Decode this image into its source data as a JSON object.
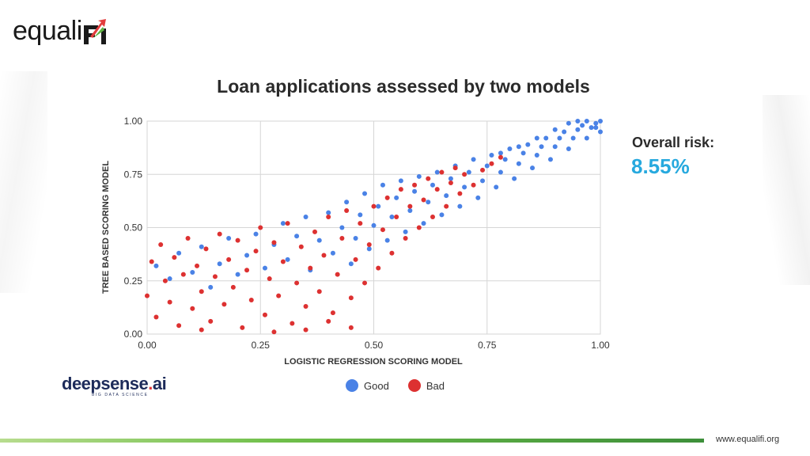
{
  "brand": {
    "name": "equaliFi",
    "partner_main": "deepsense",
    "partner_dot": ".",
    "partner_tld": "ai",
    "partner_tagline": "BIG DATA SCIENCE",
    "website": "www.equalifi.org"
  },
  "metric": {
    "label": "Overall risk:",
    "value": "8.55%",
    "color": "#27a9de"
  },
  "colors": {
    "good": "#4a82e6",
    "bad": "#dd3131",
    "grid": "#d6d6d6",
    "accent_green": "#5fb443"
  },
  "chart_data": {
    "type": "scatter",
    "title": "Loan applications assessed by two models",
    "xlabel": "LOGISTIC REGRESSION SCORING MODEL",
    "ylabel": "TREE BASED SCORING MODEL",
    "xlim": [
      0,
      1
    ],
    "ylim": [
      0,
      1
    ],
    "xticks": [
      "0.00",
      "0.25",
      "0.50",
      "0.75",
      "1.00"
    ],
    "yticks": [
      "0.00",
      "0.25",
      "0.50",
      "0.75",
      "1.00"
    ],
    "grid": true,
    "legend_position": "bottom-center",
    "series": [
      {
        "name": "Good",
        "color": "#4a82e6",
        "points": [
          [
            0.02,
            0.32
          ],
          [
            0.05,
            0.26
          ],
          [
            0.07,
            0.38
          ],
          [
            0.1,
            0.29
          ],
          [
            0.12,
            0.41
          ],
          [
            0.14,
            0.22
          ],
          [
            0.16,
            0.33
          ],
          [
            0.18,
            0.45
          ],
          [
            0.2,
            0.28
          ],
          [
            0.22,
            0.37
          ],
          [
            0.24,
            0.47
          ],
          [
            0.26,
            0.31
          ],
          [
            0.28,
            0.42
          ],
          [
            0.3,
            0.52
          ],
          [
            0.31,
            0.35
          ],
          [
            0.33,
            0.46
          ],
          [
            0.35,
            0.55
          ],
          [
            0.36,
            0.3
          ],
          [
            0.38,
            0.44
          ],
          [
            0.4,
            0.57
          ],
          [
            0.41,
            0.38
          ],
          [
            0.43,
            0.5
          ],
          [
            0.44,
            0.62
          ],
          [
            0.45,
            0.33
          ],
          [
            0.46,
            0.45
          ],
          [
            0.47,
            0.56
          ],
          [
            0.48,
            0.66
          ],
          [
            0.49,
            0.4
          ],
          [
            0.5,
            0.51
          ],
          [
            0.51,
            0.6
          ],
          [
            0.52,
            0.7
          ],
          [
            0.53,
            0.44
          ],
          [
            0.54,
            0.55
          ],
          [
            0.55,
            0.64
          ],
          [
            0.56,
            0.72
          ],
          [
            0.57,
            0.48
          ],
          [
            0.58,
            0.58
          ],
          [
            0.59,
            0.67
          ],
          [
            0.6,
            0.74
          ],
          [
            0.61,
            0.52
          ],
          [
            0.62,
            0.62
          ],
          [
            0.63,
            0.7
          ],
          [
            0.64,
            0.76
          ],
          [
            0.65,
            0.56
          ],
          [
            0.66,
            0.65
          ],
          [
            0.67,
            0.73
          ],
          [
            0.68,
            0.79
          ],
          [
            0.69,
            0.6
          ],
          [
            0.7,
            0.69
          ],
          [
            0.71,
            0.76
          ],
          [
            0.72,
            0.82
          ],
          [
            0.73,
            0.64
          ],
          [
            0.74,
            0.72
          ],
          [
            0.75,
            0.79
          ],
          [
            0.76,
            0.84
          ],
          [
            0.77,
            0.69
          ],
          [
            0.78,
            0.76
          ],
          [
            0.79,
            0.82
          ],
          [
            0.8,
            0.87
          ],
          [
            0.81,
            0.73
          ],
          [
            0.82,
            0.8
          ],
          [
            0.83,
            0.85
          ],
          [
            0.84,
            0.89
          ],
          [
            0.85,
            0.78
          ],
          [
            0.86,
            0.84
          ],
          [
            0.87,
            0.88
          ],
          [
            0.88,
            0.92
          ],
          [
            0.89,
            0.82
          ],
          [
            0.9,
            0.88
          ],
          [
            0.91,
            0.92
          ],
          [
            0.92,
            0.95
          ],
          [
            0.93,
            0.87
          ],
          [
            0.94,
            0.92
          ],
          [
            0.95,
            0.96
          ],
          [
            0.96,
            0.98
          ],
          [
            0.97,
            0.92
          ],
          [
            0.98,
            0.97
          ],
          [
            0.99,
            0.99
          ],
          [
            1.0,
            0.95
          ],
          [
            1.0,
            1.0
          ],
          [
            0.95,
            1.0
          ],
          [
            0.97,
            1.0
          ],
          [
            0.99,
            0.97
          ],
          [
            0.93,
            0.99
          ],
          [
            0.9,
            0.96
          ],
          [
            0.86,
            0.92
          ],
          [
            0.82,
            0.88
          ],
          [
            0.78,
            0.85
          ]
        ]
      },
      {
        "name": "Bad",
        "color": "#dd3131",
        "points": [
          [
            0.0,
            0.18
          ],
          [
            0.01,
            0.34
          ],
          [
            0.02,
            0.08
          ],
          [
            0.03,
            0.42
          ],
          [
            0.04,
            0.25
          ],
          [
            0.05,
            0.15
          ],
          [
            0.06,
            0.36
          ],
          [
            0.07,
            0.04
          ],
          [
            0.08,
            0.28
          ],
          [
            0.09,
            0.45
          ],
          [
            0.1,
            0.12
          ],
          [
            0.11,
            0.32
          ],
          [
            0.12,
            0.2
          ],
          [
            0.13,
            0.4
          ],
          [
            0.14,
            0.06
          ],
          [
            0.15,
            0.27
          ],
          [
            0.16,
            0.47
          ],
          [
            0.17,
            0.14
          ],
          [
            0.18,
            0.35
          ],
          [
            0.19,
            0.22
          ],
          [
            0.2,
            0.44
          ],
          [
            0.21,
            0.03
          ],
          [
            0.22,
            0.3
          ],
          [
            0.23,
            0.16
          ],
          [
            0.24,
            0.39
          ],
          [
            0.25,
            0.5
          ],
          [
            0.26,
            0.09
          ],
          [
            0.27,
            0.26
          ],
          [
            0.28,
            0.43
          ],
          [
            0.29,
            0.18
          ],
          [
            0.3,
            0.34
          ],
          [
            0.31,
            0.52
          ],
          [
            0.32,
            0.05
          ],
          [
            0.33,
            0.24
          ],
          [
            0.34,
            0.41
          ],
          [
            0.35,
            0.13
          ],
          [
            0.36,
            0.31
          ],
          [
            0.37,
            0.48
          ],
          [
            0.38,
            0.2
          ],
          [
            0.39,
            0.37
          ],
          [
            0.4,
            0.55
          ],
          [
            0.41,
            0.1
          ],
          [
            0.42,
            0.28
          ],
          [
            0.43,
            0.45
          ],
          [
            0.44,
            0.58
          ],
          [
            0.45,
            0.17
          ],
          [
            0.46,
            0.35
          ],
          [
            0.47,
            0.52
          ],
          [
            0.48,
            0.24
          ],
          [
            0.49,
            0.42
          ],
          [
            0.5,
            0.6
          ],
          [
            0.51,
            0.31
          ],
          [
            0.52,
            0.49
          ],
          [
            0.53,
            0.64
          ],
          [
            0.54,
            0.38
          ],
          [
            0.55,
            0.55
          ],
          [
            0.56,
            0.68
          ],
          [
            0.57,
            0.45
          ],
          [
            0.58,
            0.6
          ],
          [
            0.59,
            0.7
          ],
          [
            0.6,
            0.5
          ],
          [
            0.61,
            0.63
          ],
          [
            0.62,
            0.73
          ],
          [
            0.63,
            0.55
          ],
          [
            0.64,
            0.68
          ],
          [
            0.65,
            0.76
          ],
          [
            0.66,
            0.6
          ],
          [
            0.67,
            0.71
          ],
          [
            0.68,
            0.78
          ],
          [
            0.69,
            0.66
          ],
          [
            0.7,
            0.75
          ],
          [
            0.72,
            0.7
          ],
          [
            0.74,
            0.77
          ],
          [
            0.76,
            0.8
          ],
          [
            0.78,
            0.83
          ],
          [
            0.35,
            0.02
          ],
          [
            0.4,
            0.06
          ],
          [
            0.45,
            0.03
          ],
          [
            0.28,
            0.01
          ],
          [
            0.12,
            0.02
          ]
        ]
      }
    ]
  }
}
